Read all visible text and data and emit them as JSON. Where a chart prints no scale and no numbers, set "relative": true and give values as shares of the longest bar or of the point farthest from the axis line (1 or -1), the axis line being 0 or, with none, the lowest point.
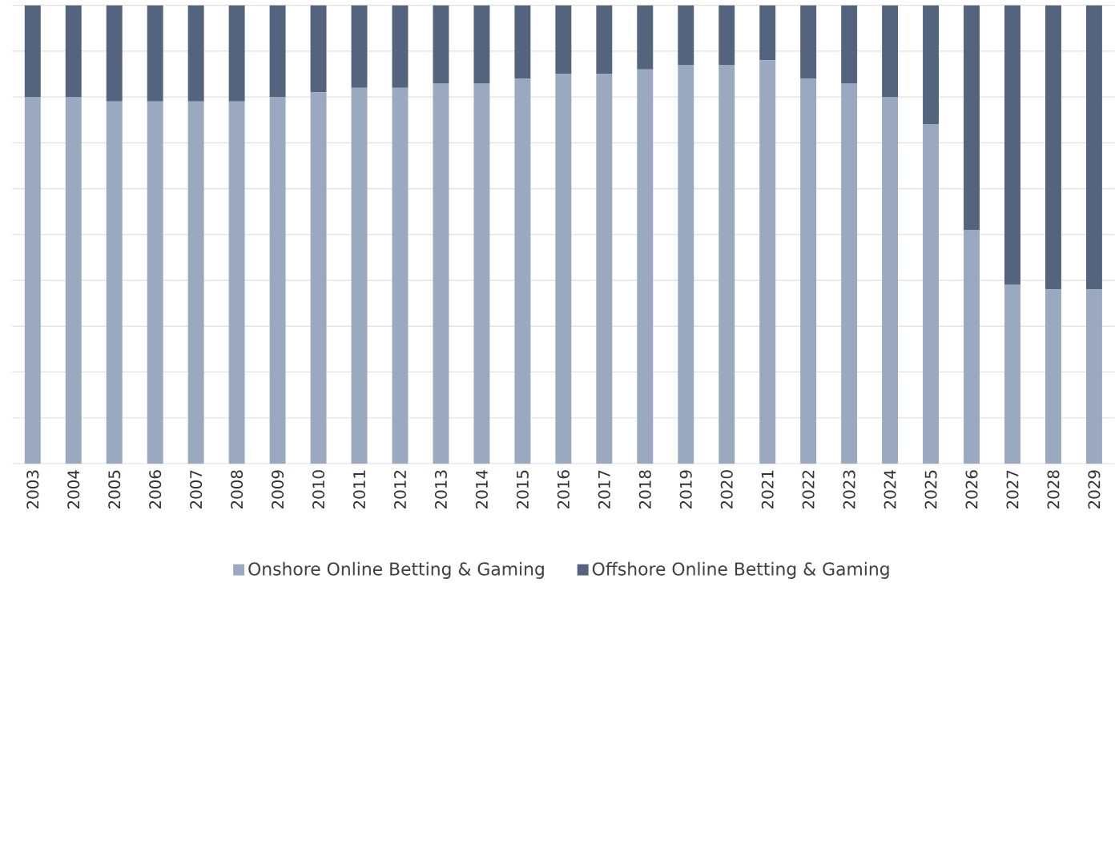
{
  "chart_data": {
    "type": "bar",
    "stacked": true,
    "relative": true,
    "grid": "y",
    "legend": "bottom",
    "categories": [
      "2003",
      "2004",
      "2005",
      "2006",
      "2007",
      "2008",
      "2009",
      "2010",
      "2011",
      "2012",
      "2013",
      "2014",
      "2015",
      "2016",
      "2017",
      "2018",
      "2019",
      "2020",
      "2021",
      "2022",
      "2023",
      "2024",
      "2025",
      "2026",
      "2027",
      "2028",
      "2029"
    ],
    "series": [
      {
        "name": "Onshore Online Betting & Gaming",
        "color": "#9aa9bf",
        "values": [
          0.8,
          0.8,
          0.79,
          0.79,
          0.79,
          0.79,
          0.8,
          0.81,
          0.82,
          0.82,
          0.83,
          0.83,
          0.84,
          0.85,
          0.85,
          0.86,
          0.87,
          0.87,
          0.88,
          0.84,
          0.83,
          0.8,
          0.74,
          0.51,
          0.39,
          0.38,
          0.38
        ]
      },
      {
        "name": "Offshore Online Betting & Gaming",
        "color": "#55647e",
        "values": [
          0.2,
          0.2,
          0.21,
          0.21,
          0.21,
          0.21,
          0.2,
          0.19,
          0.18,
          0.18,
          0.17,
          0.17,
          0.16,
          0.15,
          0.15,
          0.14,
          0.13,
          0.13,
          0.12,
          0.16,
          0.17,
          0.2,
          0.26,
          0.49,
          0.61,
          0.62,
          0.62
        ]
      }
    ]
  }
}
